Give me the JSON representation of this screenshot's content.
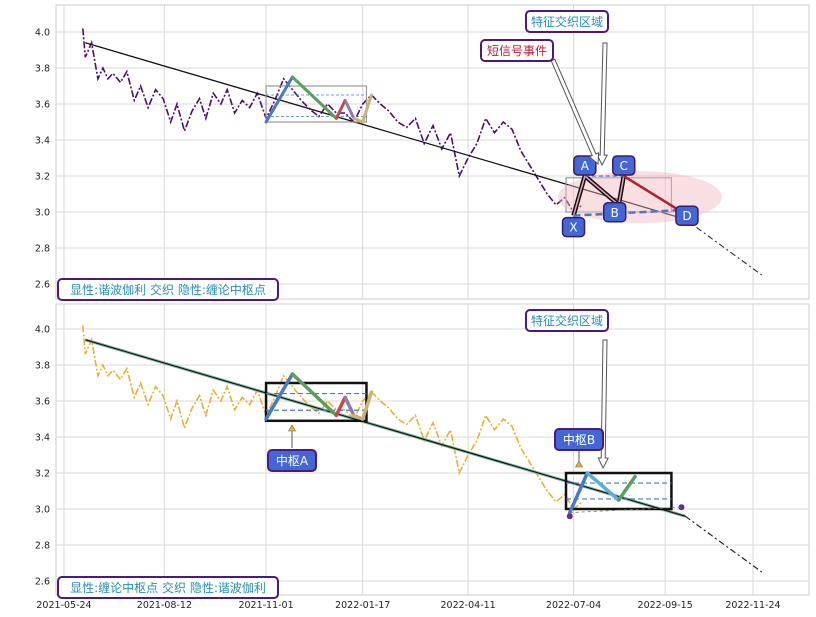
{
  "colors": {
    "purple": "#4b0b7a",
    "gold": "#e8b03a",
    "trend": "#111111",
    "blue": "#4a78c2",
    "green": "#5aa05a",
    "red": "#c84848",
    "lavender": "#8e79b0",
    "khaki": "#c8b472",
    "teal": "#2a8fb0",
    "crimson": "#b81e30",
    "badge": "#4467d6",
    "boxborder": "#4b1a7a"
  },
  "chart_data": [
    {
      "type": "line",
      "panel": "top",
      "x_ticks": [
        "2021-05-24",
        "2021-08-12",
        "2021-11-01",
        "2022-01-17",
        "2022-04-11",
        "2022-07-04",
        "2022-09-15",
        "2022-11-24"
      ],
      "y_ticks": [
        4.0,
        3.8,
        3.6,
        3.4,
        3.2,
        3.0,
        2.8,
        2.6
      ],
      "ylim": [
        2.53,
        4.12
      ],
      "grid": true,
      "price_series": {
        "x": [
          "2021-06-08",
          "2021-06-10",
          "2021-06-15",
          "2021-06-20",
          "2021-06-24",
          "2021-06-28",
          "2021-07-02",
          "2021-07-08",
          "2021-07-13",
          "2021-07-19",
          "2021-07-24",
          "2021-07-30",
          "2021-08-05",
          "2021-08-11",
          "2021-08-17",
          "2021-08-22",
          "2021-08-28",
          "2021-09-03",
          "2021-09-09",
          "2021-09-14",
          "2021-09-20",
          "2021-09-26",
          "2021-10-01",
          "2021-10-07",
          "2021-10-13",
          "2021-10-19",
          "2021-10-25",
          "2021-11-01",
          "2021-11-08",
          "2021-11-15",
          "2021-11-22",
          "2021-11-29",
          "2021-12-06",
          "2021-12-13",
          "2021-12-20",
          "2021-12-27",
          "2022-01-03",
          "2022-01-10",
          "2022-01-17",
          "2022-01-24",
          "2022-01-31",
          "2022-02-07",
          "2022-02-14",
          "2022-02-21",
          "2022-02-28",
          "2022-03-07",
          "2022-03-14",
          "2022-03-21",
          "2022-03-28",
          "2022-04-04",
          "2022-04-11",
          "2022-04-18",
          "2022-04-25",
          "2022-05-02",
          "2022-05-09",
          "2022-05-16",
          "2022-05-23",
          "2022-05-30",
          "2022-06-06",
          "2022-06-13",
          "2022-06-20",
          "2022-06-27",
          "2022-07-04",
          "2022-07-11"
        ],
        "y": [
          4.02,
          3.86,
          3.94,
          3.74,
          3.8,
          3.74,
          3.77,
          3.72,
          3.78,
          3.62,
          3.7,
          3.58,
          3.68,
          3.63,
          3.5,
          3.6,
          3.45,
          3.56,
          3.63,
          3.52,
          3.66,
          3.6,
          3.68,
          3.55,
          3.62,
          3.58,
          3.66,
          3.52,
          3.62,
          3.74,
          3.68,
          3.62,
          3.57,
          3.53,
          3.6,
          3.55,
          3.55,
          3.5,
          3.6,
          3.65,
          3.6,
          3.56,
          3.5,
          3.47,
          3.52,
          3.38,
          3.48,
          3.35,
          3.44,
          3.2,
          3.3,
          3.38,
          3.52,
          3.44,
          3.5,
          3.46,
          3.34,
          3.26,
          3.18,
          3.1,
          3.04,
          3.08,
          3.0,
          3.04
        ]
      },
      "trend_line": {
        "x": [
          "2021-06-10",
          "2022-10-01",
          "2022-12-01"
        ],
        "y": [
          3.94,
          2.96,
          2.65
        ]
      },
      "hub_box": {
        "x": [
          "2021-11-01",
          "2022-01-20"
        ],
        "y": [
          3.5,
          3.7
        ],
        "inner_y": [
          3.53,
          3.65
        ]
      },
      "hub_box_2": {
        "x": [
          "2022-06-28",
          "2022-09-20"
        ],
        "y": [
          3.0,
          3.19
        ]
      },
      "harmonic_points": {
        "labels": [
          "X",
          "A",
          "B",
          "C",
          "D"
        ],
        "x": [
          "2022-07-04",
          "2022-07-13",
          "2022-08-09",
          "2022-08-13",
          "2022-09-26"
        ],
        "y": [
          2.98,
          3.2,
          3.04,
          3.2,
          3.01
        ]
      },
      "bi_segments": {
        "x": [
          "2021-11-01",
          "2021-11-22",
          "2021-12-27",
          "2022-01-03",
          "2022-01-10",
          "2022-01-17",
          "2022-01-24"
        ],
        "y": [
          3.5,
          3.75,
          3.52,
          3.62,
          3.52,
          3.5,
          3.65
        ]
      },
      "annotations": [
        "特征交织区域",
        "短信号事件"
      ],
      "legend_text": "显性:谐波伽利 交织 隐性:缠论中枢点"
    },
    {
      "type": "line",
      "panel": "bottom",
      "x_ticks": [
        "2021-05-24",
        "2021-08-12",
        "2021-11-01",
        "2022-01-17",
        "2022-04-11",
        "2022-07-04",
        "2022-09-15",
        "2022-11-24"
      ],
      "y_ticks": [
        4.0,
        3.8,
        3.6,
        3.4,
        3.2,
        3.0,
        2.8,
        2.6
      ],
      "ylim": [
        2.53,
        4.15
      ],
      "grid": true,
      "hub_A": {
        "label": "中枢A",
        "x": [
          "2021-11-01",
          "2022-01-20"
        ],
        "y": [
          3.49,
          3.7
        ]
      },
      "hub_B": {
        "label": "中枢B",
        "x": [
          "2022-06-28",
          "2022-09-20"
        ],
        "y": [
          3.0,
          3.2
        ]
      },
      "bi_segments_A": {
        "x": [
          "2021-11-01",
          "2021-11-22",
          "2021-12-27",
          "2022-01-03",
          "2022-01-10",
          "2022-01-17",
          "2022-01-24"
        ],
        "y": [
          3.5,
          3.75,
          3.52,
          3.62,
          3.52,
          3.5,
          3.65
        ]
      },
      "bi_segments_B": {
        "x": [
          "2022-07-01",
          "2022-07-15",
          "2022-08-09",
          "2022-08-22"
        ],
        "y": [
          2.98,
          3.2,
          3.05,
          3.18
        ]
      },
      "annotations": [
        "特征交织区域"
      ],
      "legend_text": "显性:缠论中枢点 交织 隐性:谐波伽利"
    }
  ],
  "top_panel": {
    "annotation_main": "特征交织区域",
    "annotation_short": "短信号事件",
    "legend": "显性:谐波伽利 交织 隐性:缠论中枢点"
  },
  "bottom_panel": {
    "annotation_main": "特征交织区域",
    "hub_a_label": "中枢A",
    "hub_b_label": "中枢B",
    "legend": "显性:缠论中枢点 交织 隐性:谐波伽利"
  }
}
